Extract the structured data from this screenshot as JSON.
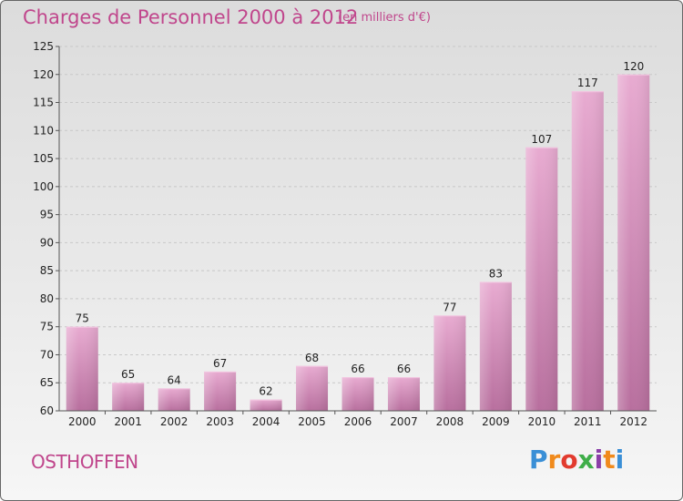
{
  "title": "Charges de Personnel 2000 à 2012",
  "subtitle": "(en milliers d'€)",
  "commune": "OSTHOFFEN",
  "logo": {
    "letters": [
      "P",
      "r",
      "o",
      "x",
      "i",
      "t",
      "i"
    ],
    "colors": [
      "#3a8fd6",
      "#f08a1c",
      "#e23b2e",
      "#3fae49",
      "#8b3fa8",
      "#f08a1c",
      "#3a8fd6"
    ]
  },
  "colors": {
    "bar": "#d687b8",
    "bar_top": "#e6a9cf",
    "accent": "#c0468c"
  },
  "chart_data": {
    "type": "bar",
    "categories": [
      "2000",
      "2001",
      "2002",
      "2003",
      "2004",
      "2005",
      "2006",
      "2007",
      "2008",
      "2009",
      "2010",
      "2011",
      "2012"
    ],
    "values": [
      75,
      65,
      64,
      67,
      62,
      68,
      66,
      66,
      77,
      83,
      107,
      117,
      120
    ],
    "ylim": [
      60,
      125
    ],
    "yticks": [
      60,
      65,
      70,
      75,
      80,
      85,
      90,
      95,
      100,
      105,
      110,
      115,
      120,
      125
    ],
    "grid": true
  }
}
